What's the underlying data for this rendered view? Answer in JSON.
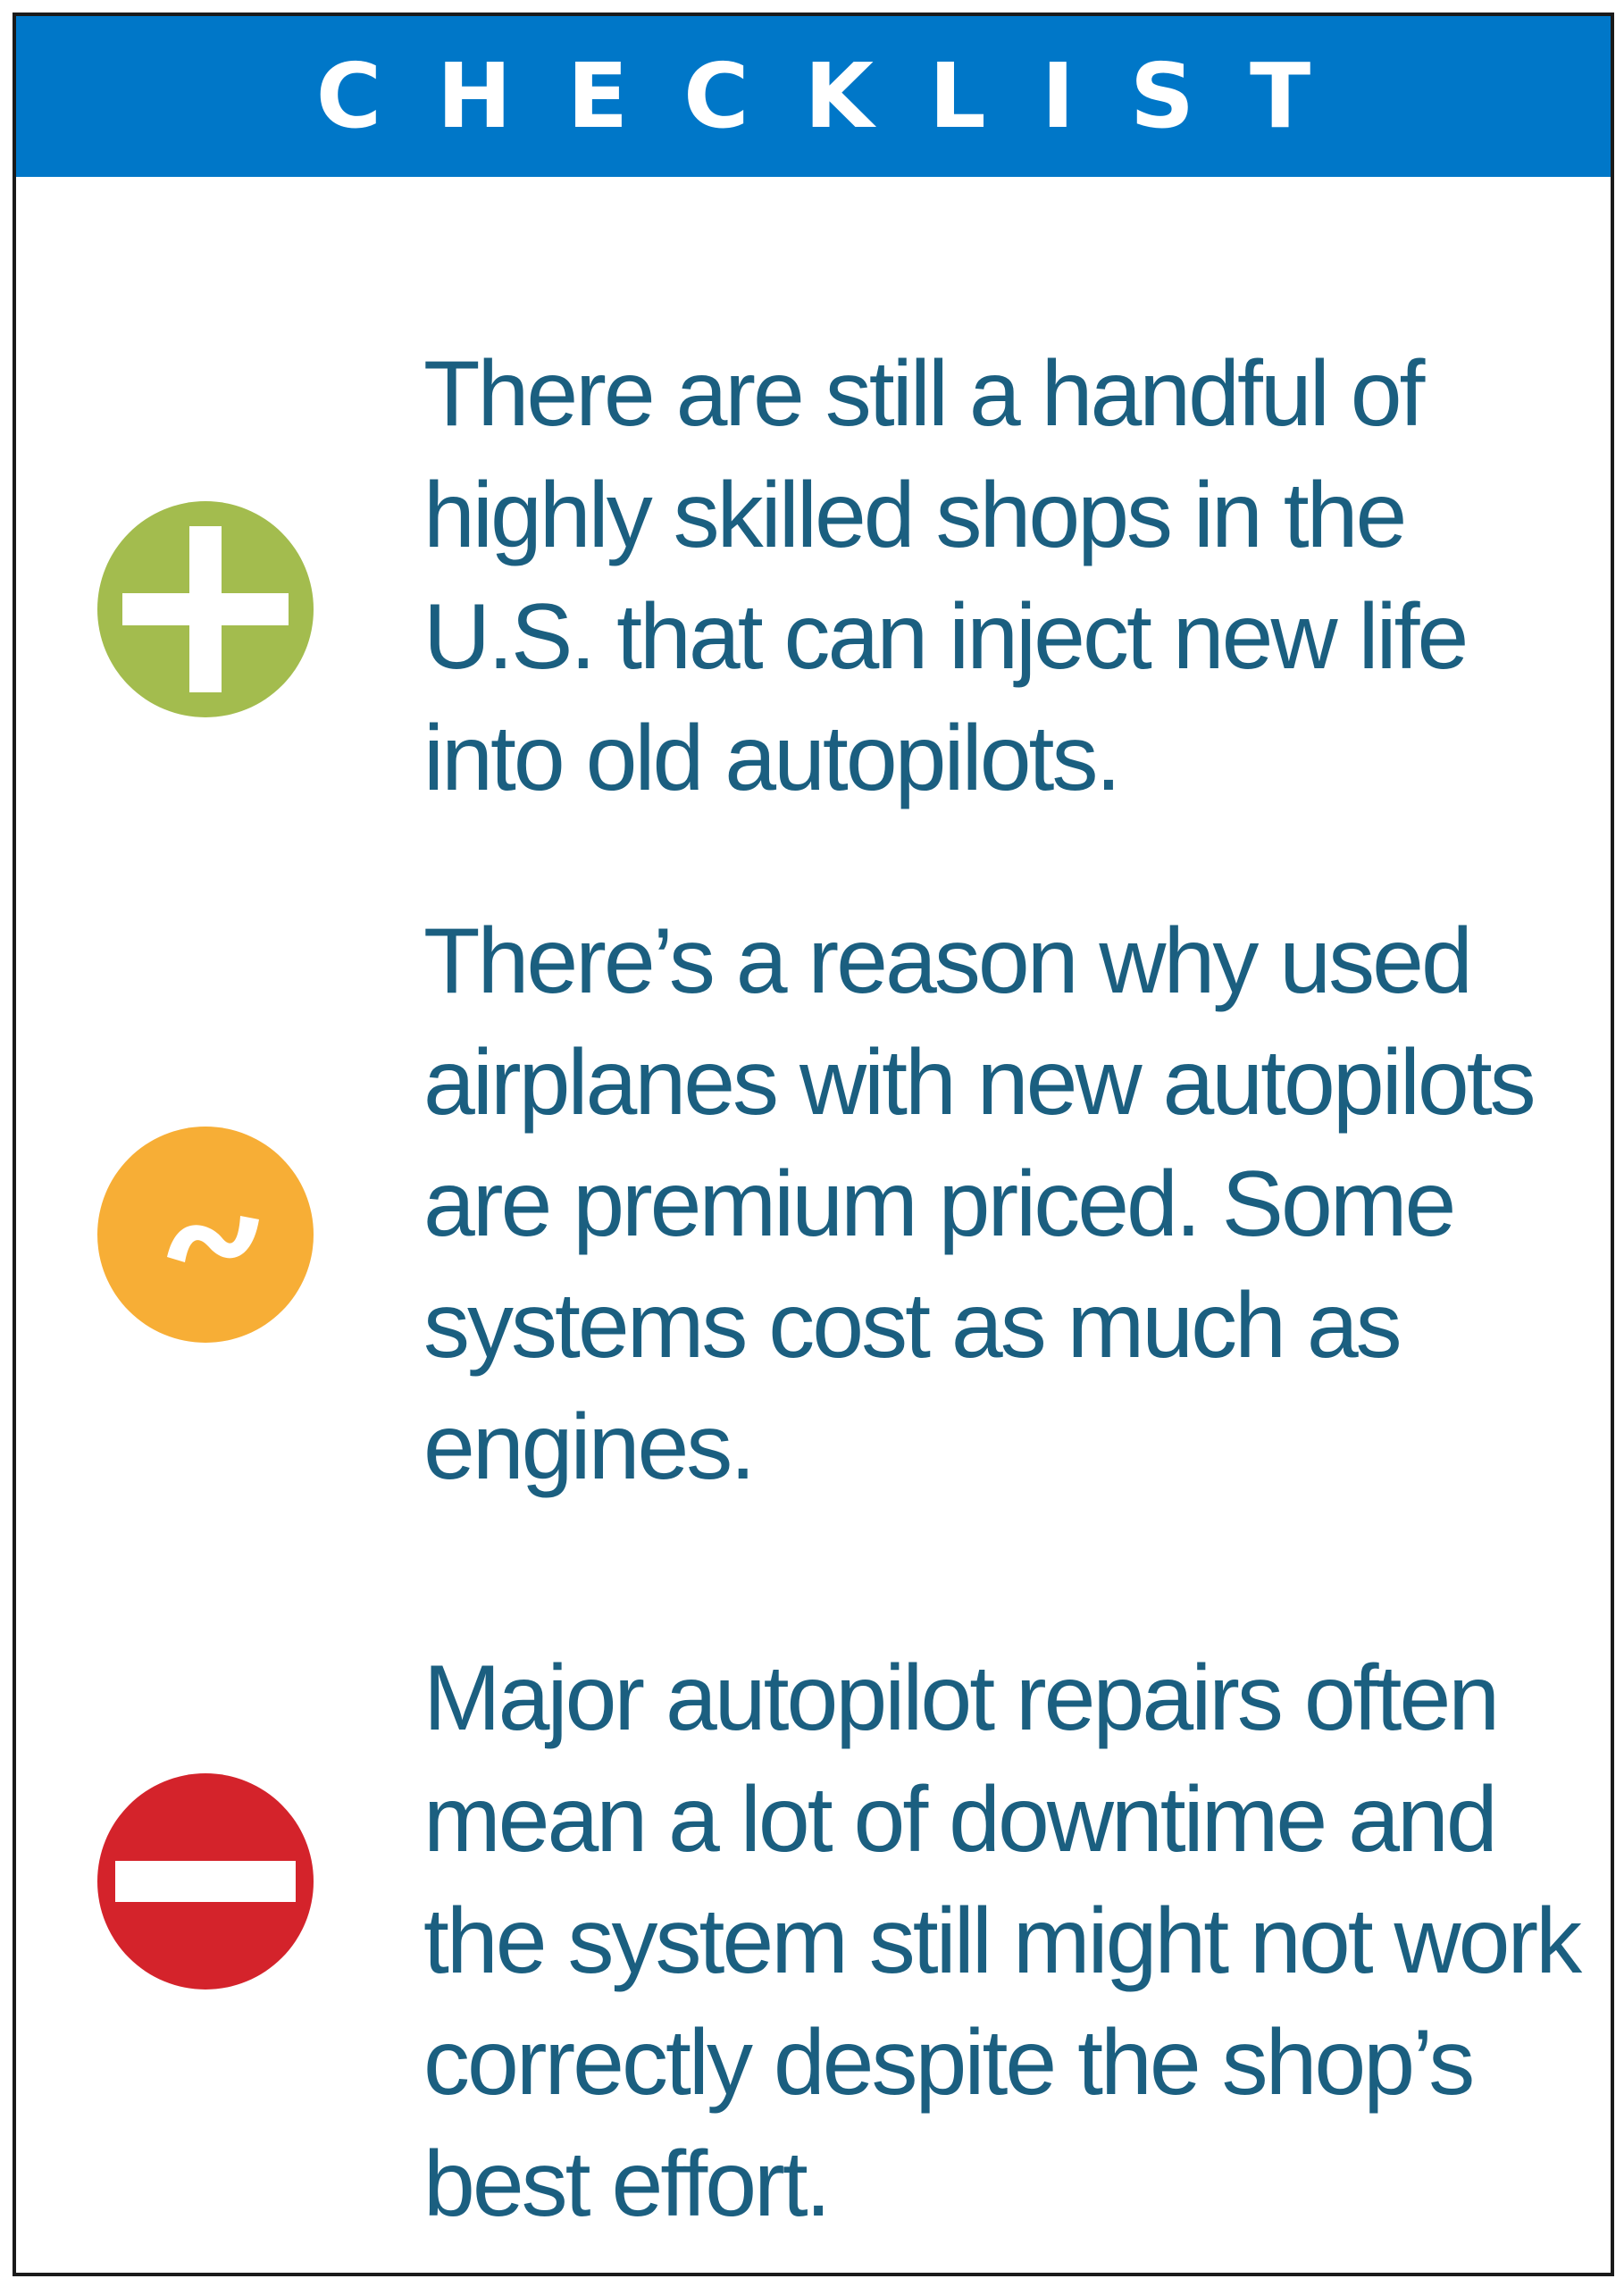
{
  "header": {
    "title": "CHECKLIST"
  },
  "colors": {
    "header_bg": "#0077c8",
    "text": "#1b5f80",
    "plus_badge": "#a3bc4e",
    "neutral_badge": "#f7ae36",
    "minus_badge": "#d4232b",
    "border": "#1a1a1a"
  },
  "items": [
    {
      "icon": "plus-icon",
      "text": "There are still a handful of highly skilled shops in the U.S. that can inject new life into old autopilots."
    },
    {
      "icon": "tilde-icon",
      "text": "There’s a reason why used airplanes with new autopilots are premium priced. Some systems cost as much as engines."
    },
    {
      "icon": "minus-icon",
      "text": "Major autopilot repairs often mean a lot of downtime and the system still might not work correctly despite the shop’s best effort."
    }
  ]
}
